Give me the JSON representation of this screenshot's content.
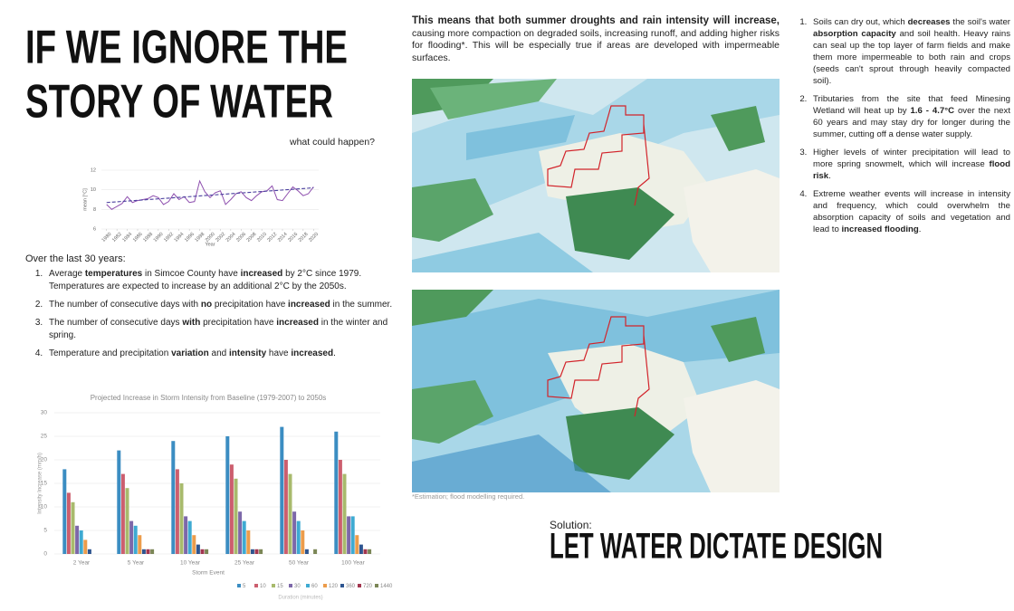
{
  "title_lines": [
    "IF WE IGNORE THE",
    "STORY OF WATER"
  ],
  "subtitle": "what could happen?",
  "intro": "Over the last 30 years:",
  "left_list": [
    [
      {
        "t": "Average "
      },
      {
        "t": "temperatures",
        "b": true
      },
      {
        "t": " in Simcoe County have "
      },
      {
        "t": "increased",
        "b": true
      },
      {
        "t": " by 2°C since 1979. Temperatures are expected to increase by an additional 2°C by the 2050s."
      }
    ],
    [
      {
        "t": "The number of consecutive days with "
      },
      {
        "t": "no",
        "b": true
      },
      {
        "t": " precipitation have "
      },
      {
        "t": "increased",
        "b": true
      },
      {
        "t": " in the summer."
      }
    ],
    [
      {
        "t": "The number of consecutive days "
      },
      {
        "t": "with",
        "b": true
      },
      {
        "t": " precipitation have "
      },
      {
        "t": "increased",
        "b": true
      },
      {
        "t": " in the winter and spring."
      }
    ],
    [
      {
        "t": "Temperature and precipitation "
      },
      {
        "t": "variation",
        "b": true
      },
      {
        "t": " and "
      },
      {
        "t": "intensity",
        "b": true
      },
      {
        "t": " have "
      },
      {
        "t": "increased",
        "b": true
      },
      {
        "t": "."
      }
    ]
  ],
  "center_text": [
    {
      "t": "This means that both summer droughts and rain intensity will increase,",
      "b": true
    },
    {
      "t": " causing more compaction on degraded soils, increasing runoff, and adding higher risks for flooding*. This will be especially true if areas are developed with impermeable surfaces."
    }
  ],
  "footnote": "*Estimation; flood modelling required.",
  "right_list": [
    [
      {
        "t": "Soils can dry out, which "
      },
      {
        "t": "decreases",
        "b": true
      },
      {
        "t": " the soil's water "
      },
      {
        "t": "absorption capacity",
        "b": true
      },
      {
        "t": " and soil health. Heavy rains can seal up the top layer of farm fields and make them more impermeable to both rain and crops (seeds can't sprout through heavily compacted soil)."
      }
    ],
    [
      {
        "t": "Tributaries from the site that feed Minesing Wetland will heat up by "
      },
      {
        "t": "1.6 - 4.7°C",
        "b": true
      },
      {
        "t": " over the next 60 years and may stay dry for longer during the summer, cutting off a dense water supply."
      }
    ],
    [
      {
        "t": "Higher levels of winter precipitation will lead to more spring snowmelt, which will increase "
      },
      {
        "t": "flood risk",
        "b": true
      },
      {
        "t": "."
      }
    ],
    [
      {
        "t": "Extreme weather events will increase in intensity and frequency, which could overwhelm the absorption capacity of soils and vegetation and lead to "
      },
      {
        "t": "increased flooding",
        "b": true
      },
      {
        "t": "."
      }
    ]
  ],
  "solution_label": "Solution:",
  "solution": "LET WATER DICTATE DESIGN",
  "chart_data": [
    {
      "type": "line",
      "x_label": "Year",
      "y_label": "mean [°C]",
      "xlim": [
        1979,
        2021
      ],
      "ylim": [
        6,
        12
      ],
      "xticks": [
        1980,
        1982,
        1984,
        1986,
        1988,
        1990,
        1992,
        1994,
        1996,
        1998,
        2000,
        2002,
        2004,
        2006,
        2008,
        2010,
        2012,
        2014,
        2016,
        2018,
        2020
      ],
      "yticks": [
        6,
        8,
        10,
        12
      ],
      "grid": true,
      "series": [
        {
          "color": "#8e4fae",
          "style": "solid",
          "x": [
            1980,
            1981,
            1982,
            1983,
            1984,
            1985,
            1986,
            1987,
            1988,
            1989,
            1990,
            1991,
            1992,
            1993,
            1994,
            1995,
            1996,
            1997,
            1998,
            1999,
            2000,
            2001,
            2002,
            2003,
            2004,
            2005,
            2006,
            2007,
            2008,
            2009,
            2010,
            2011,
            2012,
            2013,
            2014,
            2015,
            2016,
            2017,
            2018,
            2019,
            2020
          ],
          "values": [
            8.5,
            8.0,
            8.3,
            8.6,
            9.3,
            8.7,
            8.9,
            9.0,
            9.1,
            9.4,
            9.2,
            8.5,
            8.8,
            9.6,
            9.0,
            9.3,
            8.7,
            8.8,
            10.9,
            9.8,
            9.2,
            9.7,
            9.9,
            8.5,
            9.0,
            9.6,
            9.8,
            9.2,
            8.9,
            9.4,
            9.8,
            9.9,
            10.4,
            9.0,
            8.9,
            9.6,
            10.3,
            9.9,
            9.4,
            9.6,
            10.3
          ]
        },
        {
          "color": "#4a3f9e",
          "style": "dashed",
          "x": [
            1980,
            2020
          ],
          "values": [
            8.7,
            10.2
          ]
        }
      ]
    },
    {
      "type": "bar",
      "title": "Projected Increase in Storm Intensity from Baseline (1979-2007) to 2050s",
      "x_label": "Storm Event",
      "y_label": "Intensity Increase (mm/h)",
      "legend_title": "Duration (minutes)",
      "categories": [
        "2 Year",
        "5 Year",
        "10 Year",
        "25 Year",
        "50 Year",
        "100 Year"
      ],
      "ylim": [
        0,
        30
      ],
      "yticks": [
        0,
        5,
        10,
        15,
        20,
        25,
        30
      ],
      "grid": true,
      "series": [
        {
          "name": "5",
          "color": "#3b8dc2",
          "values": [
            18,
            22,
            24,
            25,
            27,
            26
          ]
        },
        {
          "name": "10",
          "color": "#cc5e6e",
          "values": [
            13,
            17,
            18,
            19,
            20,
            20
          ]
        },
        {
          "name": "15",
          "color": "#a8ba6c",
          "values": [
            11,
            14,
            15,
            16,
            17,
            17
          ]
        },
        {
          "name": "30",
          "color": "#7d68a9",
          "values": [
            6,
            7,
            8,
            9,
            9,
            8
          ]
        },
        {
          "name": "60",
          "color": "#3eaad2",
          "values": [
            5,
            6,
            7,
            7,
            7,
            8
          ]
        },
        {
          "name": "120",
          "color": "#ec9c4b",
          "values": [
            3,
            4,
            4,
            5,
            5,
            4
          ]
        },
        {
          "name": "360",
          "color": "#2e5590",
          "values": [
            1,
            1,
            2,
            1,
            1,
            2
          ]
        },
        {
          "name": "720",
          "color": "#a2364f",
          "values": [
            0,
            1,
            1,
            1,
            0,
            1
          ]
        },
        {
          "name": "1440",
          "color": "#7b8656",
          "values": [
            0,
            1,
            1,
            1,
            1,
            1
          ]
        }
      ]
    }
  ]
}
